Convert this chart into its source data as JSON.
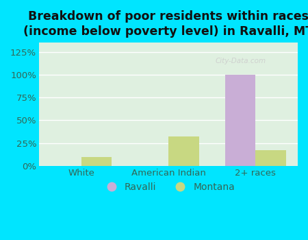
{
  "title": "Breakdown of poor residents within races\n(income below poverty level) in Ravalli, MT",
  "categories": [
    "White",
    "American Indian",
    "2+ races"
  ],
  "ravalli_values": [
    0,
    0,
    100
  ],
  "montana_values": [
    10,
    32,
    17
  ],
  "ravalli_color": "#c9aed6",
  "montana_color": "#c8d882",
  "bar_width": 0.35,
  "ylim": [
    0,
    135
  ],
  "yticks": [
    0,
    25,
    50,
    75,
    100,
    125
  ],
  "ytick_labels": [
    "0%",
    "25%",
    "50%",
    "75%",
    "100%",
    "125%"
  ],
  "background_outer": "#00e5ff",
  "background_inner": "#dff0e0",
  "grid_color": "#e8f5e9",
  "title_fontsize": 12.5,
  "tick_fontsize": 9.5,
  "legend_fontsize": 10,
  "watermark": "City-Data.com",
  "legend_labels": [
    "Ravalli",
    "Montana"
  ]
}
